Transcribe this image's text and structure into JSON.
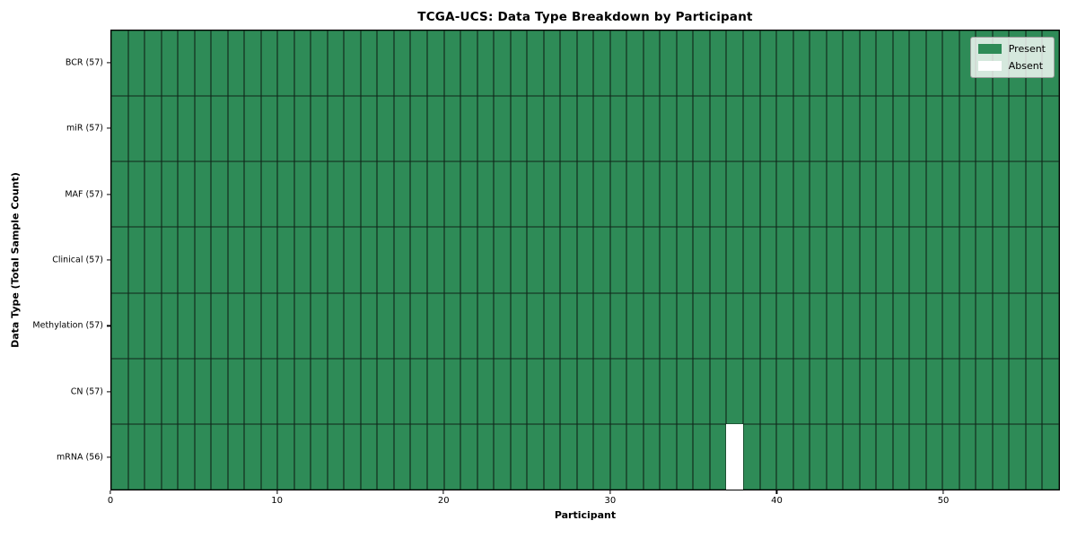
{
  "chart_data": {
    "type": "heatmap",
    "title": "TCGA-UCS: Data Type Breakdown by Participant",
    "xlabel": "Participant",
    "ylabel": "Data Type (Total Sample Count)",
    "x_ticks": [
      0,
      10,
      20,
      30,
      40,
      50
    ],
    "xlim": [
      0,
      57
    ],
    "n_participants": 57,
    "rows": [
      {
        "data_type": "BCR",
        "label": "BCR (57)",
        "total_samples": 57,
        "absent_participants": []
      },
      {
        "data_type": "miR",
        "label": "miR (57)",
        "total_samples": 57,
        "absent_participants": []
      },
      {
        "data_type": "MAF",
        "label": "MAF (57)",
        "total_samples": 57,
        "absent_participants": []
      },
      {
        "data_type": "Clinical",
        "label": "Clinical (57)",
        "total_samples": 57,
        "absent_participants": []
      },
      {
        "data_type": "Methylation",
        "label": "Methylation (57)",
        "total_samples": 57,
        "absent_participants": []
      },
      {
        "data_type": "CN",
        "label": "CN (57)",
        "total_samples": 57,
        "absent_participants": []
      },
      {
        "data_type": "mRNA",
        "label": "mRNA (56)",
        "total_samples": 56,
        "absent_participants": [
          37
        ]
      }
    ],
    "legend": {
      "position": "upper right",
      "entries": [
        {
          "label": "Present",
          "color": "#2e8b57"
        },
        {
          "label": "Absent",
          "color": "#ffffff"
        }
      ]
    },
    "colors": {
      "present": "#2e8b57",
      "absent": "#ffffff",
      "cell_edge": "#141414",
      "axis": "#000000"
    },
    "grid": "cell-borders"
  }
}
